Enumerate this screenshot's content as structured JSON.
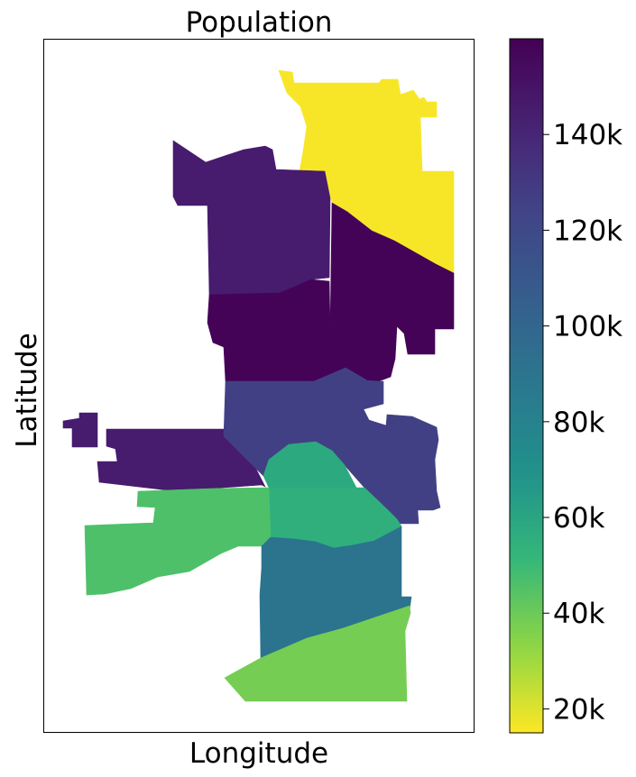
{
  "chart_data": {
    "type": "choropleth",
    "title": "Population",
    "xlabel": "Longitude",
    "ylabel": "Latitude",
    "colormap": "viridis_r",
    "colorbar": {
      "min": 15000,
      "max": 160000,
      "ticks": [
        20000,
        40000,
        60000,
        80000,
        100000,
        120000,
        140000
      ],
      "tick_labels": [
        "20k",
        "40k",
        "60k",
        "80k",
        "100k",
        "120k",
        "140k"
      ]
    },
    "regions": [
      {
        "population": 16000
      },
      {
        "population": 146000
      },
      {
        "population": 159000
      },
      {
        "population": 159000
      },
      {
        "population": 146000
      },
      {
        "population": 126000
      },
      {
        "population": 126000
      },
      {
        "population": 58000
      },
      {
        "population": 55000
      },
      {
        "population": 46000
      },
      {
        "population": 91000
      },
      {
        "population": 38000
      }
    ]
  }
}
